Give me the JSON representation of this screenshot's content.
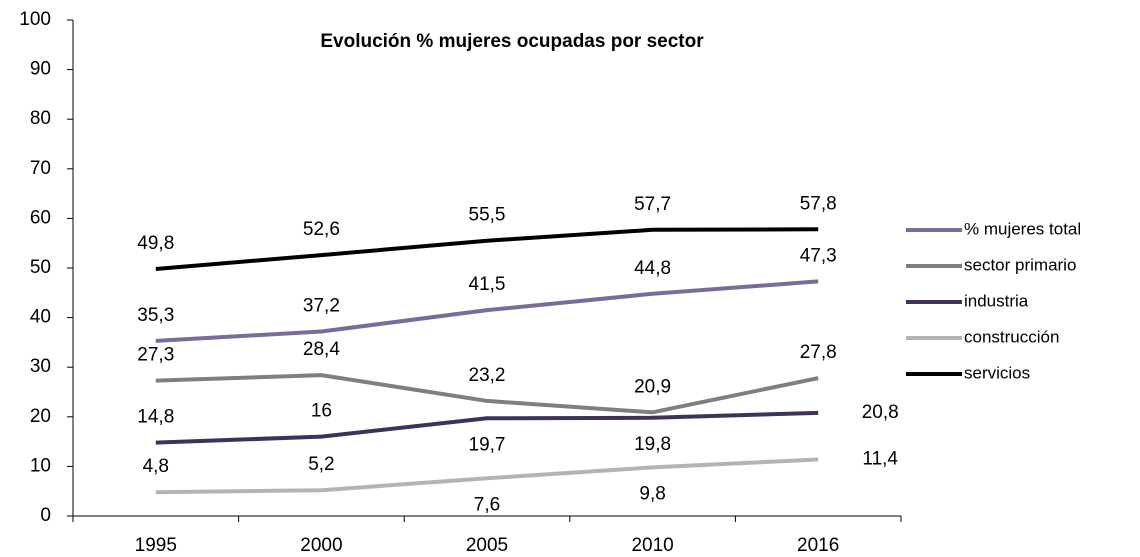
{
  "chart_data": {
    "type": "line",
    "title": "Evolución % mujeres ocupadas por sector",
    "categories": [
      "1995",
      "2000",
      "2005",
      "2010",
      "2016"
    ],
    "ylim": [
      0,
      100
    ],
    "yticks": [
      0,
      10,
      20,
      30,
      40,
      50,
      60,
      70,
      80,
      90,
      100
    ],
    "legend": "right",
    "series": [
      {
        "name": "% mujeres total",
        "color": "#7b6a9c",
        "values": [
          35.3,
          37.2,
          41.5,
          44.8,
          47.3
        ],
        "value_labels": [
          "35,3",
          "37,2",
          "41,5",
          "44,8",
          "47,3"
        ]
      },
      {
        "name": "sector primario",
        "color": "#7f7f7f",
        "values": [
          27.3,
          28.4,
          23.2,
          20.9,
          27.8
        ],
        "value_labels": [
          "27,3",
          "28,4",
          "23,2",
          "20,9",
          "27,8"
        ]
      },
      {
        "name": "industria",
        "color": "#3f3159",
        "values": [
          14.8,
          16,
          19.7,
          19.8,
          20.8
        ],
        "value_labels": [
          "14,8",
          "16",
          "19,7",
          "19,8",
          "20,8"
        ]
      },
      {
        "name": "construcción",
        "color": "#b3b3b3",
        "values": [
          4.8,
          5.2,
          7.6,
          9.8,
          11.4
        ],
        "value_labels": [
          "4,8",
          "5,2",
          "7,6",
          "9,8",
          "11,4"
        ]
      },
      {
        "name": "servicios",
        "color": "#000000",
        "values": [
          49.8,
          52.6,
          55.5,
          57.7,
          57.8
        ],
        "value_labels": [
          "49,8",
          "52,6",
          "55,5",
          "57,7",
          "57,8"
        ]
      }
    ]
  }
}
